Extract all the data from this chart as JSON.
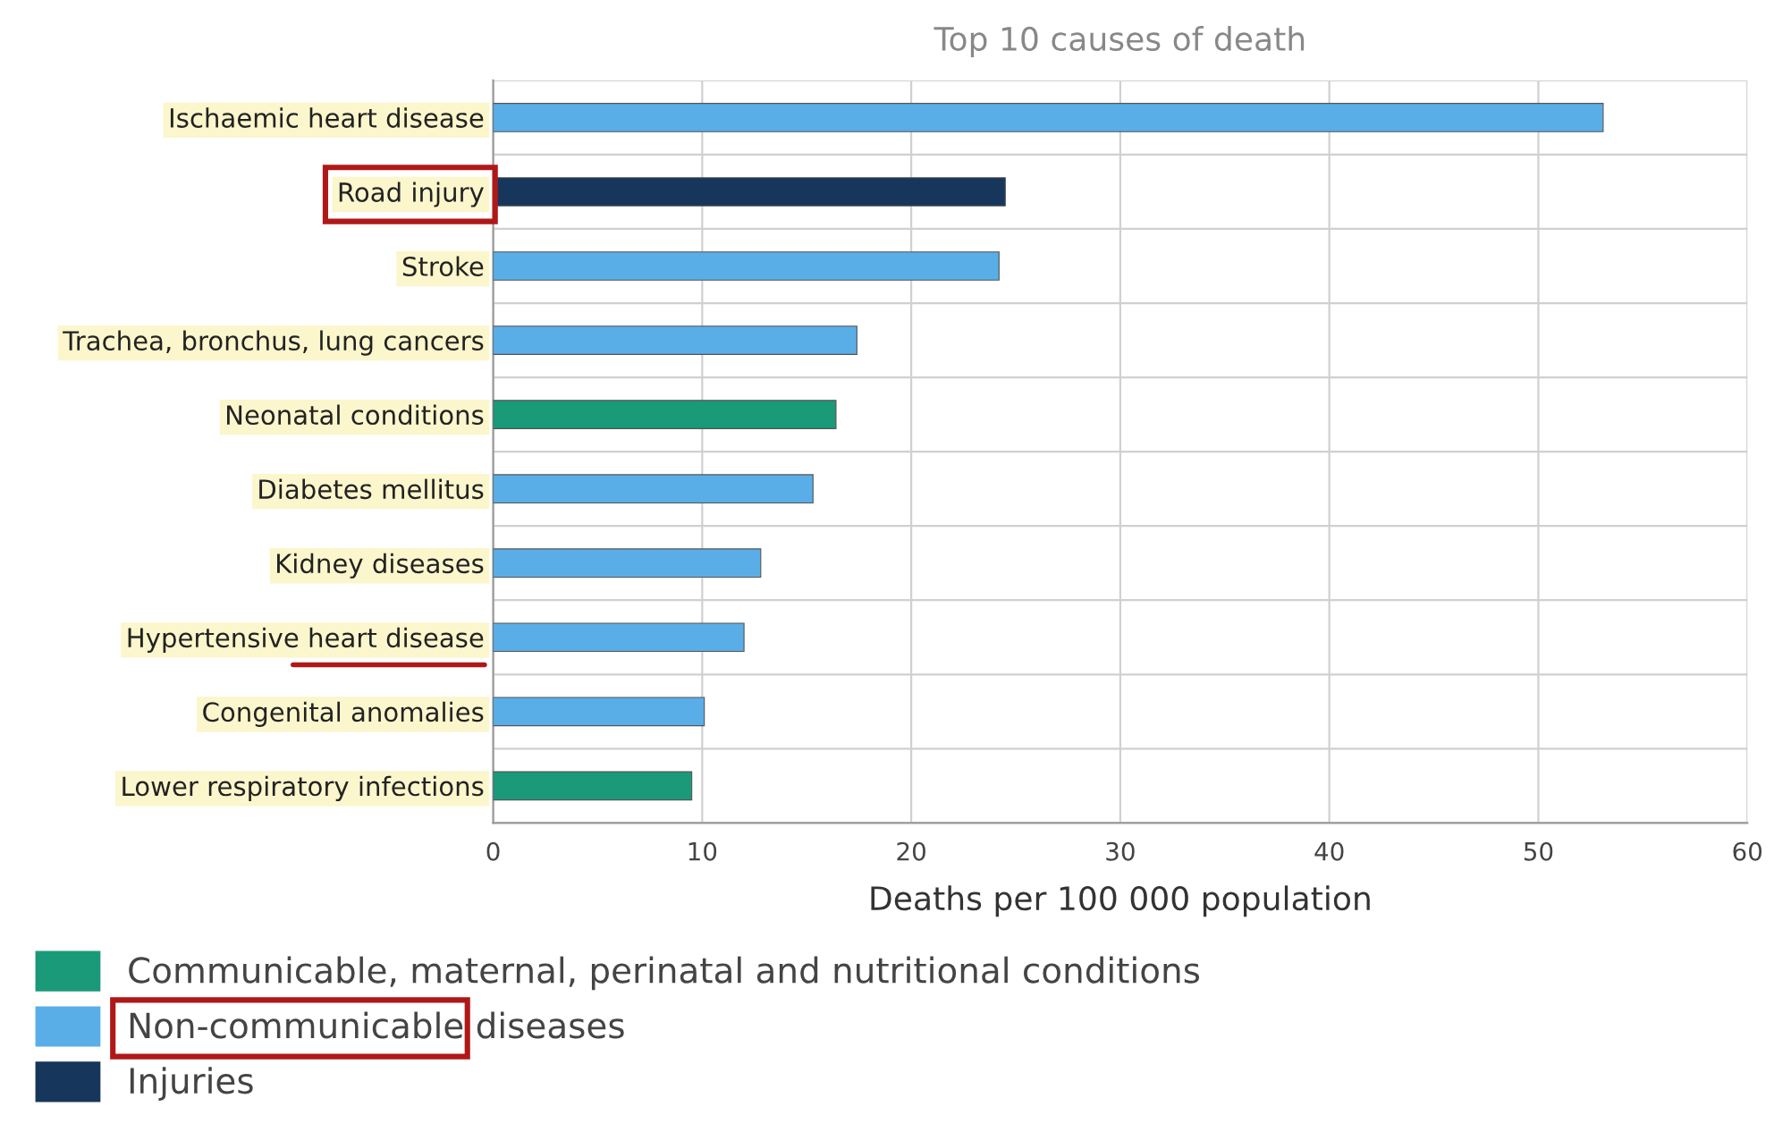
{
  "chart_data": {
    "type": "bar",
    "orientation": "horizontal",
    "title": "Top 10 causes of death",
    "xlabel": "Deaths per 100 000 population",
    "categories": [
      "Ischaemic heart disease",
      "Road injury",
      "Stroke",
      "Trachea, bronchus, lung cancers",
      "Neonatal conditions",
      "Diabetes mellitus",
      "Kidney diseases",
      "Hypertensive heart disease",
      "Congenital anomalies",
      "Lower respiratory infections"
    ],
    "series": [
      {
        "name": "Communicable, maternal, perinatal and nutritional conditions",
        "color": "#1a9a78",
        "values": [
          null,
          null,
          null,
          null,
          16.4,
          null,
          null,
          null,
          null,
          9.5
        ]
      },
      {
        "name": "Non-communicable diseases",
        "color": "#5aaee8",
        "values": [
          53.1,
          null,
          24.2,
          17.4,
          null,
          15.3,
          12.8,
          12.0,
          10.1,
          null
        ]
      },
      {
        "name": "Injuries",
        "color": "#16365c",
        "values": [
          null,
          24.5,
          null,
          null,
          null,
          null,
          null,
          null,
          null,
          null
        ]
      }
    ],
    "xlim": [
      0,
      60
    ],
    "xticks": [
      0,
      10,
      20,
      30,
      40,
      50,
      60
    ],
    "grid": true,
    "legend": "bottom"
  }
}
